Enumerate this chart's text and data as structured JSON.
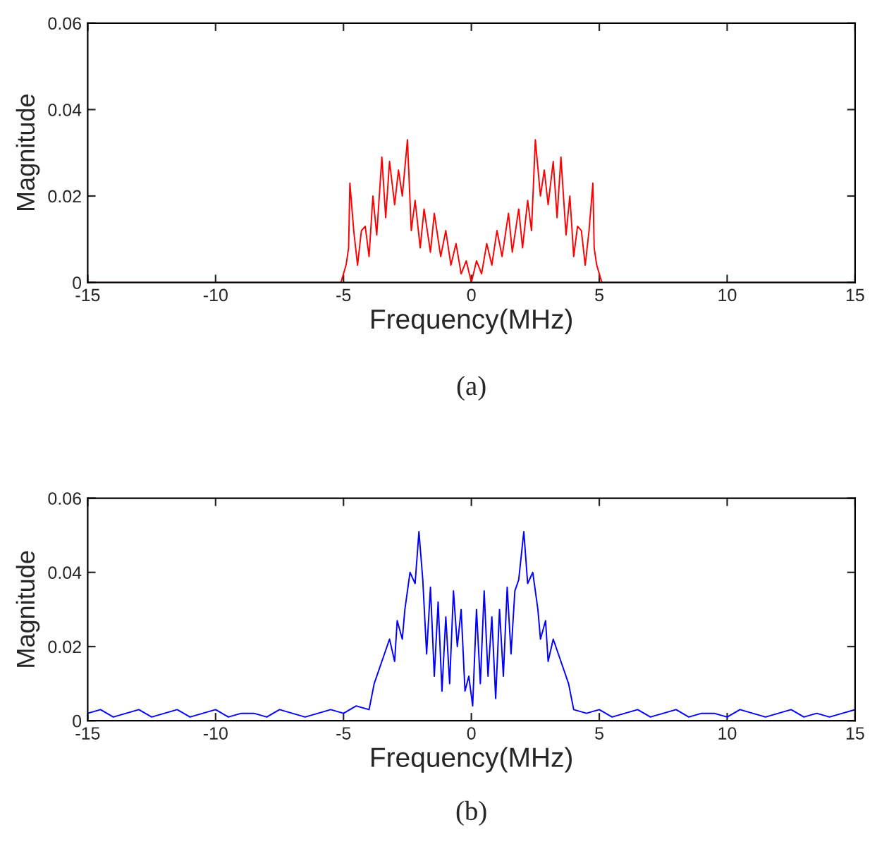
{
  "chart_data": [
    {
      "type": "line",
      "xlabel": "Frequency(MHz)",
      "ylabel": "Magnitude",
      "annotations": [
        "(a)"
      ],
      "xlim": [
        -15,
        15
      ],
      "xticks": [
        -15,
        -10,
        -5,
        0,
        5,
        10,
        15
      ],
      "ylim": [
        0,
        0.06
      ],
      "yticks": [
        0,
        0.02,
        0.04,
        0.06
      ],
      "grid": false,
      "series": [
        {
          "color": "#ff0000",
          "x": [
            -15,
            -10,
            -5.1,
            -4.9,
            -4.8,
            -4.75,
            -4.6,
            -4.45,
            -4.3,
            -4.15,
            -4.0,
            -3.85,
            -3.7,
            -3.5,
            -3.35,
            -3.2,
            -3.0,
            -2.85,
            -2.7,
            -2.5,
            -2.35,
            -2.2,
            -2.0,
            -1.85,
            -1.6,
            -1.45,
            -1.2,
            -1.0,
            -0.8,
            -0.6,
            -0.4,
            -0.2,
            0.0,
            0.2,
            0.4,
            0.6,
            0.8,
            1.0,
            1.2,
            1.45,
            1.6,
            1.85,
            2.0,
            2.2,
            2.35,
            2.5,
            2.7,
            2.85,
            3.0,
            3.2,
            3.35,
            3.5,
            3.7,
            3.85,
            4.0,
            4.15,
            4.3,
            4.45,
            4.6,
            4.75,
            4.8,
            4.9,
            5.1,
            10,
            15
          ],
          "values": [
            0,
            0,
            0,
            0.004,
            0.008,
            0.023,
            0.012,
            0.004,
            0.012,
            0.013,
            0.006,
            0.02,
            0.011,
            0.029,
            0.015,
            0.028,
            0.018,
            0.026,
            0.02,
            0.033,
            0.012,
            0.019,
            0.008,
            0.017,
            0.007,
            0.016,
            0.006,
            0.012,
            0.004,
            0.009,
            0.002,
            0.005,
            0.0,
            0.005,
            0.002,
            0.009,
            0.004,
            0.012,
            0.006,
            0.016,
            0.007,
            0.017,
            0.008,
            0.019,
            0.012,
            0.033,
            0.02,
            0.026,
            0.018,
            0.028,
            0.015,
            0.029,
            0.011,
            0.02,
            0.006,
            0.013,
            0.012,
            0.004,
            0.012,
            0.023,
            0.008,
            0.004,
            0,
            0,
            0
          ]
        }
      ]
    },
    {
      "type": "line",
      "xlabel": "Frequency(MHz)",
      "ylabel": "Magnitude",
      "annotations": [
        "(b)"
      ],
      "xlim": [
        -15,
        15
      ],
      "xticks": [
        -15,
        -10,
        -5,
        0,
        5,
        10,
        15
      ],
      "ylim": [
        0,
        0.06
      ],
      "yticks": [
        0,
        0.02,
        0.04,
        0.06
      ],
      "grid": false,
      "series": [
        {
          "color": "#0000ff",
          "x": [
            -15,
            -14.5,
            -14,
            -13.5,
            -13,
            -12.5,
            -12,
            -11.5,
            -11,
            -10.5,
            -10,
            -9.5,
            -9,
            -8.5,
            -8,
            -7.5,
            -7,
            -6.5,
            -6,
            -5.5,
            -5,
            -4.5,
            -4.0,
            -3.8,
            -3.6,
            -3.4,
            -3.2,
            -3.0,
            -2.9,
            -2.7,
            -2.6,
            -2.4,
            -2.2,
            -2.05,
            -1.9,
            -1.75,
            -1.6,
            -1.45,
            -1.3,
            -1.15,
            -1.0,
            -0.85,
            -0.7,
            -0.55,
            -0.4,
            -0.25,
            -0.1,
            0.05,
            0.2,
            0.35,
            0.5,
            0.65,
            0.8,
            0.95,
            1.1,
            1.25,
            1.4,
            1.55,
            1.7,
            1.85,
            2.05,
            2.2,
            2.4,
            2.6,
            2.7,
            2.9,
            3.0,
            3.2,
            3.4,
            3.6,
            3.8,
            4.0,
            4.5,
            5,
            5.5,
            6,
            6.5,
            7,
            7.5,
            8,
            8.5,
            9,
            9.5,
            10,
            10.5,
            11,
            11.5,
            12,
            12.5,
            13,
            13.5,
            14,
            14.5,
            15
          ],
          "values": [
            0.002,
            0.003,
            0.001,
            0.002,
            0.003,
            0.001,
            0.002,
            0.003,
            0.001,
            0.002,
            0.003,
            0.001,
            0.002,
            0.002,
            0.001,
            0.003,
            0.002,
            0.001,
            0.002,
            0.003,
            0.002,
            0.004,
            0.003,
            0.01,
            0.014,
            0.018,
            0.022,
            0.016,
            0.027,
            0.022,
            0.03,
            0.04,
            0.037,
            0.051,
            0.038,
            0.018,
            0.036,
            0.012,
            0.032,
            0.008,
            0.028,
            0.01,
            0.035,
            0.02,
            0.03,
            0.008,
            0.012,
            0.004,
            0.03,
            0.01,
            0.035,
            0.012,
            0.028,
            0.006,
            0.03,
            0.012,
            0.036,
            0.018,
            0.035,
            0.038,
            0.051,
            0.037,
            0.04,
            0.03,
            0.022,
            0.027,
            0.016,
            0.022,
            0.018,
            0.014,
            0.01,
            0.003,
            0.002,
            0.003,
            0.001,
            0.002,
            0.003,
            0.001,
            0.002,
            0.003,
            0.001,
            0.002,
            0.002,
            0.001,
            0.003,
            0.002,
            0.001,
            0.002,
            0.003,
            0.001,
            0.002,
            0.001,
            0.002,
            0.003
          ]
        }
      ]
    }
  ]
}
